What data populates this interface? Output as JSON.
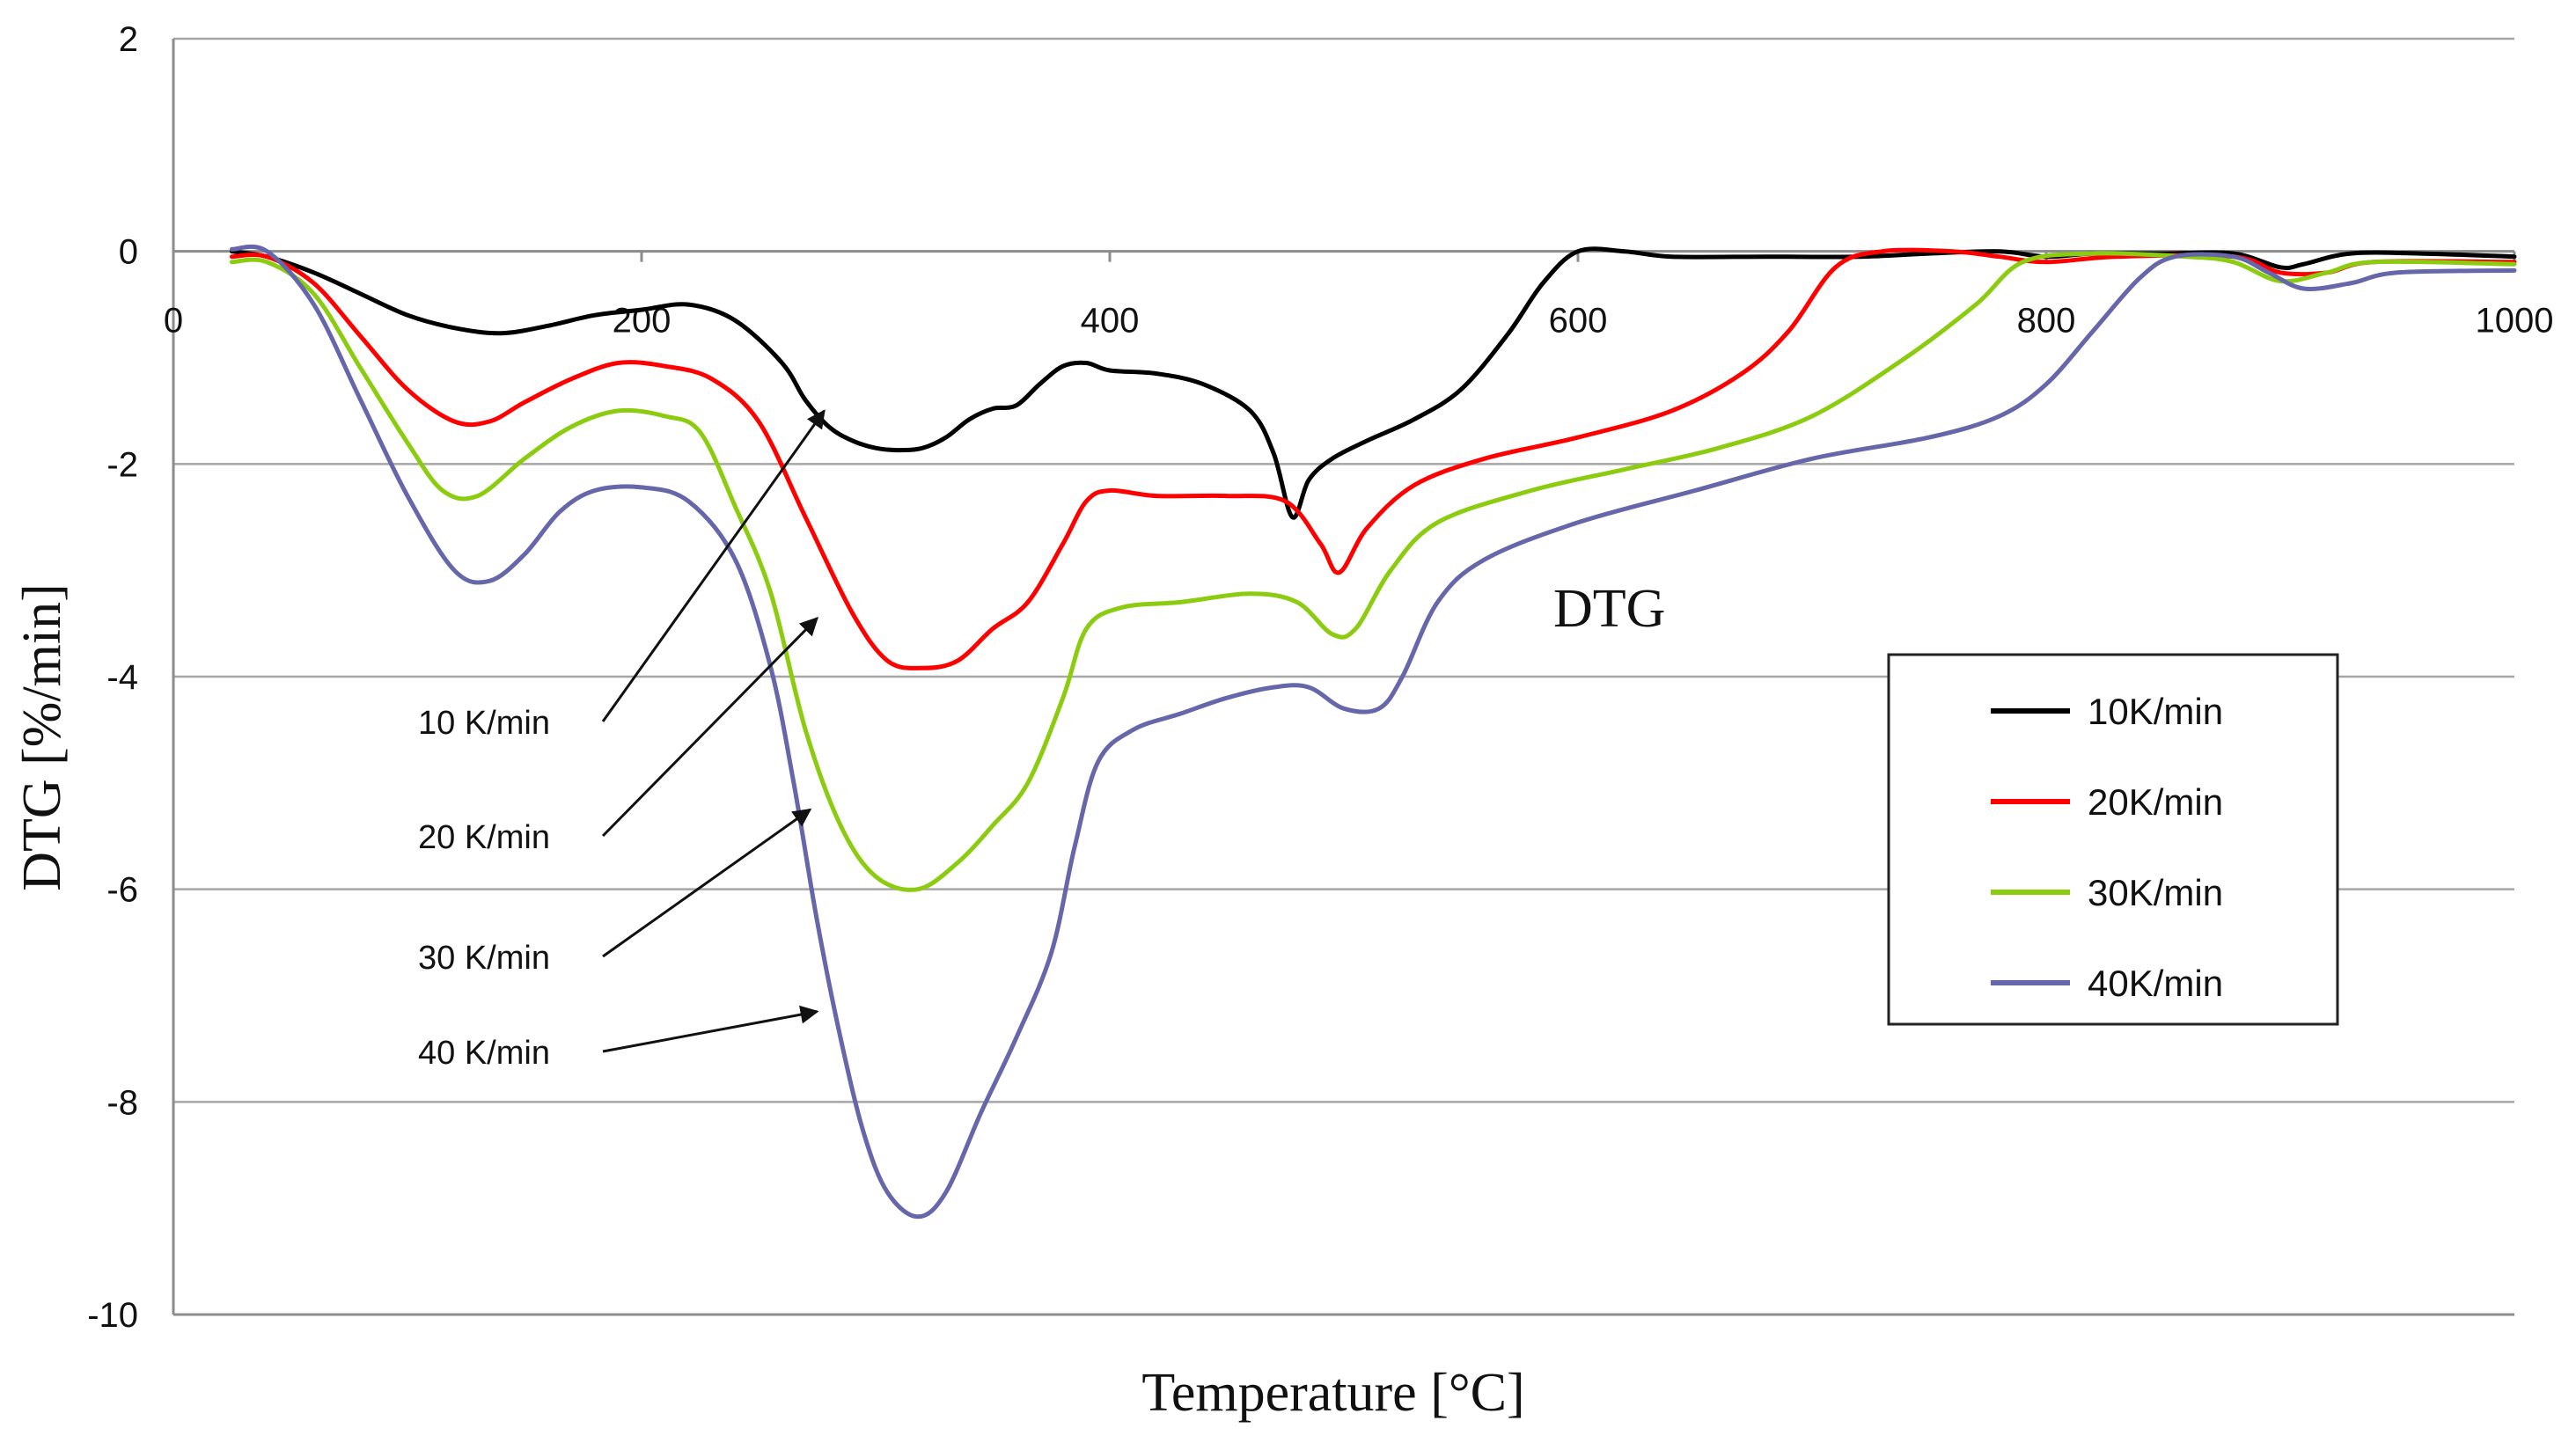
{
  "chart_data": {
    "type": "line",
    "title": "DTG",
    "xlabel": "Temperature [°C]",
    "ylabel": "DTG [%/min]",
    "xlim": [
      0,
      1000
    ],
    "ylim": [
      -10,
      2
    ],
    "x_ticks": [
      0,
      200,
      400,
      600,
      800,
      1000
    ],
    "y_ticks": [
      -10,
      -8,
      -6,
      -4,
      -2,
      0,
      2
    ],
    "grid": true,
    "legend_position": "right",
    "series": [
      {
        "name": "10K/min",
        "color": "#000000",
        "points": [
          [
            25,
            0
          ],
          [
            40,
            -0.05
          ],
          [
            60,
            -0.2
          ],
          [
            80,
            -0.4
          ],
          [
            100,
            -0.6
          ],
          [
            120,
            -0.72
          ],
          [
            140,
            -0.77
          ],
          [
            160,
            -0.7
          ],
          [
            180,
            -0.6
          ],
          [
            200,
            -0.55
          ],
          [
            220,
            -0.5
          ],
          [
            240,
            -0.65
          ],
          [
            260,
            -1.05
          ],
          [
            270,
            -1.4
          ],
          [
            280,
            -1.65
          ],
          [
            290,
            -1.78
          ],
          [
            300,
            -1.85
          ],
          [
            310,
            -1.87
          ],
          [
            320,
            -1.85
          ],
          [
            330,
            -1.75
          ],
          [
            340,
            -1.58
          ],
          [
            350,
            -1.48
          ],
          [
            360,
            -1.45
          ],
          [
            370,
            -1.25
          ],
          [
            380,
            -1.08
          ],
          [
            390,
            -1.05
          ],
          [
            400,
            -1.12
          ],
          [
            420,
            -1.15
          ],
          [
            440,
            -1.25
          ],
          [
            460,
            -1.5
          ],
          [
            470,
            -1.9
          ],
          [
            478,
            -2.5
          ],
          [
            485,
            -2.15
          ],
          [
            495,
            -1.95
          ],
          [
            510,
            -1.78
          ],
          [
            530,
            -1.58
          ],
          [
            550,
            -1.3
          ],
          [
            570,
            -0.78
          ],
          [
            585,
            -0.3
          ],
          [
            600,
            0
          ],
          [
            620,
            0
          ],
          [
            640,
            -0.05
          ],
          [
            680,
            -0.05
          ],
          [
            720,
            -0.05
          ],
          [
            750,
            -0.02
          ],
          [
            780,
            0
          ],
          [
            800,
            -0.05
          ],
          [
            820,
            -0.02
          ],
          [
            850,
            -0.02
          ],
          [
            880,
            -0.02
          ],
          [
            900,
            -0.15
          ],
          [
            910,
            -0.12
          ],
          [
            930,
            -0.02
          ],
          [
            960,
            -0.02
          ],
          [
            1000,
            -0.05
          ]
        ]
      },
      {
        "name": "20K/min",
        "color": "#ff0000",
        "points": [
          [
            25,
            -0.05
          ],
          [
            40,
            -0.05
          ],
          [
            60,
            -0.3
          ],
          [
            80,
            -0.8
          ],
          [
            100,
            -1.3
          ],
          [
            120,
            -1.6
          ],
          [
            135,
            -1.6
          ],
          [
            150,
            -1.42
          ],
          [
            170,
            -1.2
          ],
          [
            190,
            -1.05
          ],
          [
            210,
            -1.08
          ],
          [
            230,
            -1.2
          ],
          [
            250,
            -1.6
          ],
          [
            270,
            -2.5
          ],
          [
            290,
            -3.4
          ],
          [
            305,
            -3.85
          ],
          [
            320,
            -3.92
          ],
          [
            335,
            -3.85
          ],
          [
            350,
            -3.55
          ],
          [
            365,
            -3.3
          ],
          [
            380,
            -2.75
          ],
          [
            390,
            -2.35
          ],
          [
            400,
            -2.25
          ],
          [
            420,
            -2.3
          ],
          [
            450,
            -2.3
          ],
          [
            475,
            -2.35
          ],
          [
            490,
            -2.75
          ],
          [
            498,
            -3.02
          ],
          [
            510,
            -2.6
          ],
          [
            530,
            -2.2
          ],
          [
            560,
            -1.95
          ],
          [
            600,
            -1.75
          ],
          [
            640,
            -1.5
          ],
          [
            670,
            -1.15
          ],
          [
            690,
            -0.75
          ],
          [
            710,
            -0.15
          ],
          [
            730,
            0
          ],
          [
            760,
            0
          ],
          [
            780,
            -0.05
          ],
          [
            800,
            -0.1
          ],
          [
            830,
            -0.05
          ],
          [
            880,
            -0.05
          ],
          [
            900,
            -0.2
          ],
          [
            920,
            -0.2
          ],
          [
            940,
            -0.1
          ],
          [
            1000,
            -0.1
          ]
        ]
      },
      {
        "name": "30K/min",
        "color": "#8ccc10",
        "points": [
          [
            25,
            -0.1
          ],
          [
            40,
            -0.1
          ],
          [
            60,
            -0.4
          ],
          [
            80,
            -1.1
          ],
          [
            100,
            -1.8
          ],
          [
            115,
            -2.25
          ],
          [
            130,
            -2.3
          ],
          [
            150,
            -1.95
          ],
          [
            170,
            -1.65
          ],
          [
            190,
            -1.5
          ],
          [
            210,
            -1.55
          ],
          [
            225,
            -1.7
          ],
          [
            240,
            -2.4
          ],
          [
            255,
            -3.2
          ],
          [
            270,
            -4.5
          ],
          [
            285,
            -5.4
          ],
          [
            300,
            -5.88
          ],
          [
            318,
            -6.0
          ],
          [
            335,
            -5.75
          ],
          [
            350,
            -5.4
          ],
          [
            365,
            -5.0
          ],
          [
            380,
            -4.2
          ],
          [
            390,
            -3.55
          ],
          [
            405,
            -3.35
          ],
          [
            430,
            -3.3
          ],
          [
            460,
            -3.22
          ],
          [
            480,
            -3.3
          ],
          [
            495,
            -3.6
          ],
          [
            505,
            -3.55
          ],
          [
            520,
            -3.0
          ],
          [
            540,
            -2.55
          ],
          [
            580,
            -2.25
          ],
          [
            620,
            -2.05
          ],
          [
            660,
            -1.85
          ],
          [
            700,
            -1.55
          ],
          [
            740,
            -1.0
          ],
          [
            770,
            -0.5
          ],
          [
            790,
            -0.1
          ],
          [
            820,
            -0.02
          ],
          [
            860,
            -0.05
          ],
          [
            880,
            -0.1
          ],
          [
            900,
            -0.28
          ],
          [
            920,
            -0.2
          ],
          [
            940,
            -0.1
          ],
          [
            1000,
            -0.12
          ]
        ]
      },
      {
        "name": "40K/min",
        "color": "#6666aa",
        "points": [
          [
            25,
            0.02
          ],
          [
            40,
            0
          ],
          [
            60,
            -0.5
          ],
          [
            80,
            -1.4
          ],
          [
            100,
            -2.3
          ],
          [
            120,
            -3.0
          ],
          [
            135,
            -3.1
          ],
          [
            150,
            -2.85
          ],
          [
            165,
            -2.45
          ],
          [
            180,
            -2.25
          ],
          [
            200,
            -2.22
          ],
          [
            220,
            -2.35
          ],
          [
            240,
            -2.9
          ],
          [
            255,
            -3.9
          ],
          [
            265,
            -5.0
          ],
          [
            275,
            -6.3
          ],
          [
            285,
            -7.4
          ],
          [
            295,
            -8.3
          ],
          [
            305,
            -8.85
          ],
          [
            318,
            -9.08
          ],
          [
            330,
            -8.85
          ],
          [
            345,
            -8.1
          ],
          [
            360,
            -7.4
          ],
          [
            375,
            -6.6
          ],
          [
            385,
            -5.6
          ],
          [
            395,
            -4.8
          ],
          [
            410,
            -4.5
          ],
          [
            430,
            -4.35
          ],
          [
            450,
            -4.2
          ],
          [
            470,
            -4.1
          ],
          [
            485,
            -4.1
          ],
          [
            500,
            -4.3
          ],
          [
            515,
            -4.3
          ],
          [
            525,
            -4.0
          ],
          [
            540,
            -3.3
          ],
          [
            560,
            -2.9
          ],
          [
            600,
            -2.55
          ],
          [
            650,
            -2.25
          ],
          [
            700,
            -1.95
          ],
          [
            750,
            -1.75
          ],
          [
            780,
            -1.55
          ],
          [
            800,
            -1.25
          ],
          [
            820,
            -0.75
          ],
          [
            840,
            -0.25
          ],
          [
            855,
            -0.05
          ],
          [
            880,
            -0.05
          ],
          [
            895,
            -0.2
          ],
          [
            910,
            -0.35
          ],
          [
            930,
            -0.3
          ],
          [
            950,
            -0.2
          ],
          [
            1000,
            -0.18
          ]
        ]
      }
    ],
    "annotations": [
      {
        "label": "10 K/min",
        "target": [
          278,
          -1.5
        ]
      },
      {
        "label": "20 K/min",
        "target": [
          275,
          -3.45
        ]
      },
      {
        "label": "30 K/min",
        "target": [
          272,
          -5.25
        ]
      },
      {
        "label": "40 K/min",
        "target": [
          275,
          -7.15
        ]
      }
    ]
  }
}
